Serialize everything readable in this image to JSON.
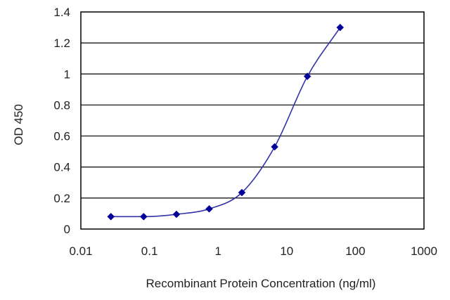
{
  "chart_data": {
    "type": "scatter",
    "title": "",
    "xlabel": "Recombinant Protein Concentration (ng/ml)",
    "ylabel": "OD 450",
    "x_scale": "log",
    "xlim": [
      0.01,
      1000
    ],
    "ylim": [
      0,
      1.4
    ],
    "x_ticks": [
      0.01,
      0.1,
      1,
      10,
      100,
      1000
    ],
    "x_tick_labels": [
      "0.01",
      "0.1",
      "1",
      "10",
      "100",
      "1000"
    ],
    "y_ticks": [
      0,
      0.2,
      0.4,
      0.6,
      0.8,
      1,
      1.2,
      1.4
    ],
    "y_tick_labels": [
      "0",
      "0.2",
      "0.4",
      "0.6",
      "0.8",
      "1",
      "1.2",
      "1.4"
    ],
    "grid": "horizontal",
    "legend": "none",
    "series": [
      {
        "points": [
          {
            "x": 0.0274,
            "y": 0.08
          },
          {
            "x": 0.0823,
            "y": 0.08
          },
          {
            "x": 0.247,
            "y": 0.095
          },
          {
            "x": 0.741,
            "y": 0.13
          },
          {
            "x": 2.22,
            "y": 0.235
          },
          {
            "x": 6.67,
            "y": 0.53
          },
          {
            "x": 20,
            "y": 0.985
          },
          {
            "x": 60,
            "y": 1.3
          }
        ],
        "fit": "sigmoid",
        "color": "#000099"
      }
    ],
    "colors": {
      "plot_border": "#000000",
      "grid": "#000000",
      "marker": "#000099",
      "curve": "#3333aa"
    }
  }
}
